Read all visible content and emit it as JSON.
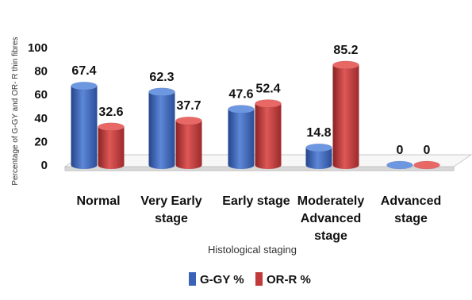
{
  "chart_data": {
    "type": "bar",
    "categories": [
      [
        "Normal"
      ],
      [
        "Very Early",
        "stage"
      ],
      [
        "Early stage"
      ],
      [
        "Moderately",
        "Advanced",
        "stage"
      ],
      [
        "Advanced",
        "stage"
      ]
    ],
    "series": [
      {
        "name": "G-GY %",
        "values": [
          67.4,
          62.3,
          47.6,
          14.8,
          0
        ],
        "labels": [
          "67.4",
          "62.3",
          "47.6",
          "14.8",
          "0"
        ]
      },
      {
        "name": "OR-R %",
        "values": [
          32.6,
          37.7,
          52.4,
          85.2,
          0
        ],
        "labels": [
          "32.6",
          "37.7",
          "52.4",
          "85.2",
          "0"
        ]
      }
    ],
    "xlabel": "Histological staging",
    "ylabel": "Percentage of G-GY and OR- R thin fibres",
    "ylim": [
      0,
      100
    ],
    "yticks": [
      0,
      20,
      40,
      60,
      80,
      100
    ],
    "grid": false,
    "legend": "bottom",
    "colors": {
      "G-GY %": "#3a63b8",
      "OR-R %": "#c0393b"
    }
  }
}
